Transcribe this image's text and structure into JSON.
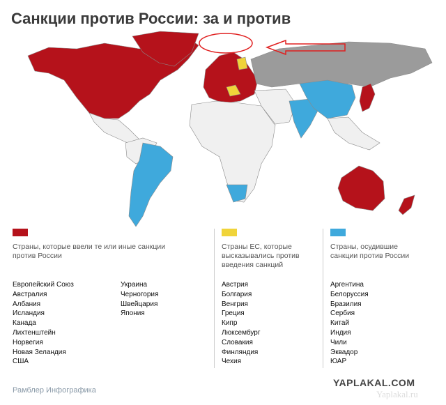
{
  "title": "Санкции против России: за и против",
  "groups": [
    {
      "label": "Страны, которые ввели те или иные санкции против России",
      "countries": [
        [
          "Европейский Союз",
          "Австралия",
          "Албания",
          "Исландия",
          "Канада",
          "Лихтенштейн",
          "Норвегия",
          "Новая Зеландия",
          "США"
        ],
        [
          "Украина",
          "Черногория",
          "Швейцария",
          "Япония"
        ]
      ]
    },
    {
      "label": "Страны ЕС, которые высказывались против введения санкций",
      "countries": [
        [
          "Австрия",
          "Болгария",
          "Венгрия",
          "Греция",
          "Кипр",
          "Люксембург",
          "Словакия",
          "Финляндия",
          "Чехия"
        ]
      ]
    },
    {
      "label": "Страны, осудившие санкции против России",
      "countries": [
        [
          "Аргентина",
          "Белоруссия",
          "Бразилия",
          "Сербия",
          "Китай",
          "Индия",
          "Чили",
          "Эквадор",
          "ЮАР"
        ]
      ]
    }
  ],
  "footer": "Рамблер Инфографика",
  "watermark": "YAPLAKAL.COM",
  "watermark2": "Yaplakal.ru"
}
